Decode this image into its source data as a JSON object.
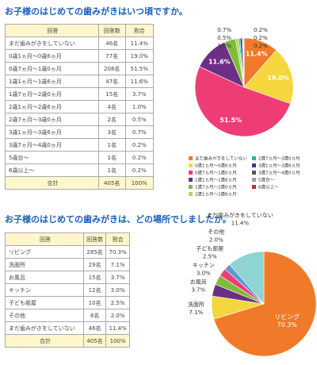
{
  "titles": [
    "お子様のはじめての歯みがきはいつ頃ですか。",
    "お子様のはじめての歯みがきは、どの場所でしましたか。"
  ],
  "tables": [
    {
      "header": [
        "回答",
        "回答数",
        "割合"
      ],
      "rows": [
        [
          "まだ歯みがきをしていない",
          "46名",
          "11.4%"
        ],
        [
          "0歳1ヵ月〜0歳6ヵ月",
          "77名",
          "19.0%"
        ],
        [
          "0歳7ヵ月〜1歳0ヵ月",
          "208名",
          "51.5%"
        ],
        [
          "1歳1ヵ月〜1歳6ヵ月",
          "47名",
          "11.6%"
        ],
        [
          "1歳7ヵ月〜2歳0ヵ月",
          "15名",
          "3.7%"
        ],
        [
          "2歳1ヵ月〜2歳6ヵ月",
          "4名",
          "1.0%"
        ],
        [
          "2歳7ヵ月〜3歳0ヵ月",
          "2名",
          "0.5%"
        ],
        [
          "3歳1ヵ月〜3歳6ヵ月",
          "3名",
          "0.7%"
        ],
        [
          "3歳7ヵ月〜4歳0ヵ月",
          "1名",
          "0.2%"
        ],
        [
          "5歳台〜",
          "1名",
          "0.2%"
        ],
        [
          "6歳以上〜",
          "1名",
          "0.2%"
        ],
        [
          "合計",
          "405名",
          "100%"
        ]
      ]
    },
    {
      "header": [
        "回答",
        "回答数",
        "割合"
      ],
      "rows": [
        [
          "リビング",
          "285名",
          "70.3%"
        ],
        [
          "洗面所",
          "29名",
          "7.1%"
        ],
        [
          "お風呂",
          "15名",
          "3.7%"
        ],
        [
          "キッチン",
          "12名",
          "3.0%"
        ],
        [
          "子ども部屋",
          "10名",
          "2.5%"
        ],
        [
          "その他",
          "8名",
          "2.0%"
        ],
        [
          "まだ歯みがきをしていない",
          "46名",
          "11.4%"
        ],
        [
          "合計",
          "405名",
          "100%"
        ]
      ]
    }
  ],
  "chart_data": [
    {
      "type": "pie",
      "categories": [
        "まだ歯みがきをしていない",
        "0歳1ヵ月〜0歳6ヵ月",
        "0歳7ヵ月〜1歳0ヵ月",
        "1歳1ヵ月〜1歳6ヵ月",
        "1歳7ヵ月〜2歳0ヵ月",
        "2歳1ヵ月〜2歳6ヵ月",
        "2歳7ヵ月〜3歳0ヵ月",
        "3歳1ヵ月〜3歳6ヵ月",
        "3歳7ヵ月〜4歳0ヵ月",
        "5歳台〜",
        "6歳以上〜"
      ],
      "values": [
        11.4,
        19.0,
        51.5,
        11.6,
        3.7,
        1.0,
        0.5,
        0.7,
        0.2,
        0.2,
        0.2
      ],
      "value_labels": [
        "11.4%",
        "19.0%",
        "51.5%",
        "11.6%",
        null,
        "1.0%",
        "0.5%",
        "0.7%",
        "0.2%",
        "0.2%",
        "0.2%"
      ],
      "colors": [
        "#f07a2a",
        "#f5d63c",
        "#ee3d75",
        "#6b2f86",
        "#7dbb3a",
        "#b3d96a",
        "#2bb0b0",
        "#2c3f8f",
        "#555555",
        "#9e9e9e",
        "#b5322e"
      ],
      "legend": true
    },
    {
      "type": "pie",
      "categories": [
        "リビング",
        "洗面所",
        "お風呂",
        "キッチン",
        "子ども部屋",
        "その他",
        "まだ歯みがきをしていない"
      ],
      "values": [
        70.3,
        7.1,
        3.7,
        3.0,
        2.5,
        2.0,
        11.4
      ],
      "value_labels": [
        "70.3%",
        "7.1%",
        "3.7%",
        "3.0%",
        "2.5%",
        "2.0%",
        "11.4%"
      ],
      "colors": [
        "#f07a2a",
        "#f5d63c",
        "#6b2f86",
        "#7dbb3a",
        "#ee3d75",
        "#5b9bd5",
        "#8fd3d3"
      ],
      "legend": false
    }
  ]
}
